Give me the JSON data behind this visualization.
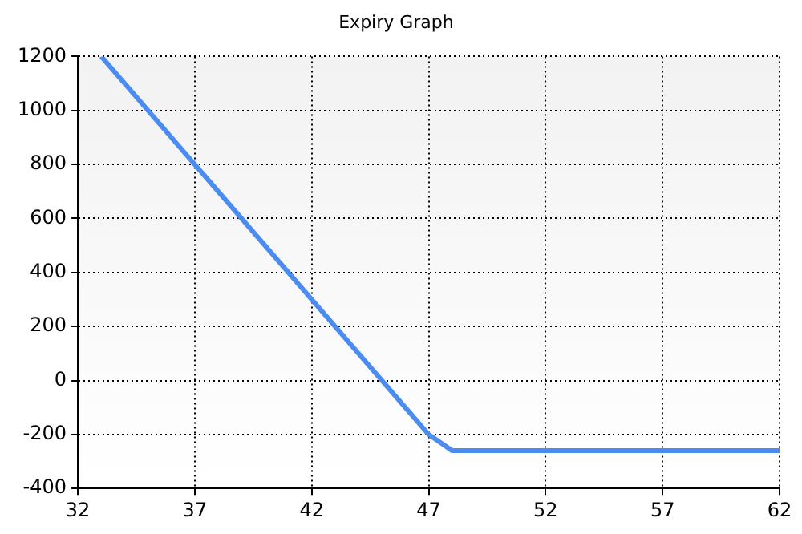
{
  "chart_data": {
    "type": "line",
    "title": "Expiry Graph",
    "x": [
      33,
      47,
      48,
      62
    ],
    "series": [
      {
        "color": "#4a8cf0",
        "values": [
          1200,
          -200,
          -260,
          -260
        ]
      }
    ],
    "xlim": [
      32,
      62
    ],
    "xticks": [
      32,
      37,
      42,
      47,
      52,
      57,
      62
    ],
    "ylim": [
      -400,
      1200
    ],
    "yticks": [
      -400,
      -200,
      0,
      200,
      400,
      600,
      800,
      1000,
      1200
    ],
    "grid": true,
    "legend": false,
    "marker": "none",
    "line_style": "solid"
  }
}
